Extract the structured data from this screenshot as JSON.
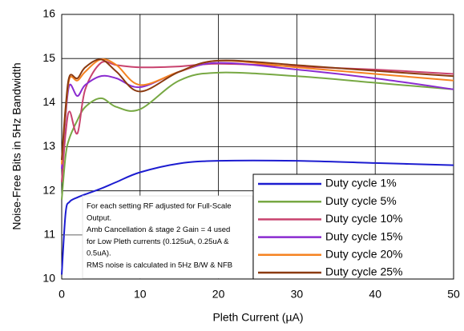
{
  "chart_data": {
    "type": "line",
    "xlabel": "Pleth Current (µA)",
    "ylabel": "Noise-Free Bits in 5Hz Bandwidth",
    "xlim": [
      0,
      50
    ],
    "xticks": [
      0,
      10,
      20,
      30,
      40,
      50
    ],
    "ylim": [
      10,
      16
    ],
    "yticks": [
      10,
      11,
      12,
      13,
      14,
      15,
      16
    ],
    "grid": true,
    "legend": "lower right",
    "x": [
      0,
      0.5,
      1,
      2,
      3,
      5,
      7,
      10,
      15,
      20,
      30,
      40,
      50
    ],
    "series": [
      {
        "name": "Duty cycle 1%",
        "color": "#1c1cd0",
        "values": [
          10.1,
          11.5,
          11.75,
          11.85,
          11.92,
          12.05,
          12.2,
          12.42,
          12.62,
          12.68,
          12.68,
          12.63,
          12.58
        ]
      },
      {
        "name": "Duty cycle 5%",
        "color": "#77a843",
        "values": [
          11.8,
          12.8,
          13.2,
          13.6,
          13.9,
          14.1,
          13.9,
          13.85,
          14.5,
          14.68,
          14.6,
          14.45,
          14.3
        ]
      },
      {
        "name": "Duty cycle 10%",
        "color": "#c8426e",
        "values": [
          12.2,
          13.3,
          13.8,
          13.3,
          14.3,
          14.9,
          14.85,
          14.8,
          14.82,
          14.88,
          14.82,
          14.75,
          14.65
        ]
      },
      {
        "name": "Duty cycle 15%",
        "color": "#8a2bd0",
        "values": [
          12.5,
          13.7,
          14.4,
          14.15,
          14.4,
          14.6,
          14.55,
          14.35,
          14.7,
          14.9,
          14.75,
          14.55,
          14.3
        ]
      },
      {
        "name": "Duty cycle 20%",
        "color": "#f58220",
        "values": [
          12.6,
          13.8,
          14.55,
          14.5,
          14.7,
          14.98,
          14.85,
          14.4,
          14.7,
          14.95,
          14.8,
          14.65,
          14.5
        ]
      },
      {
        "name": "Duty cycle 25%",
        "color": "#8b3a10",
        "values": [
          12.7,
          13.9,
          14.6,
          14.55,
          14.8,
          14.98,
          14.7,
          14.25,
          14.7,
          14.95,
          14.85,
          14.72,
          14.6
        ]
      }
    ],
    "annotations": [
      "For each setting RF adjusted for Full-Scale",
      "Output.",
      "Amb Cancellation & stage 2 Gain = 4 used",
      "for Low Pleth currents (0.125uA, 0.25uA &",
      "0.5uA).",
      "RMS noise is calculated in 5Hz B/W & NFB"
    ]
  }
}
